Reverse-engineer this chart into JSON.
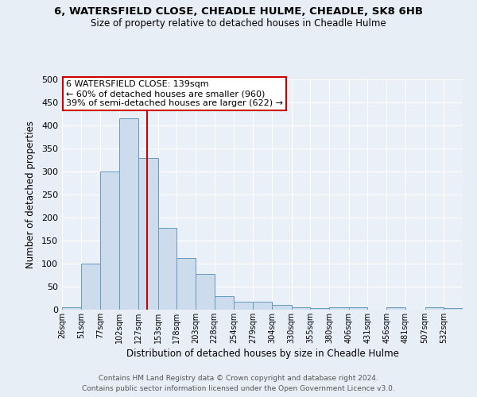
{
  "title1": "6, WATERSFIELD CLOSE, CHEADLE HULME, CHEADLE, SK8 6HB",
  "title2": "Size of property relative to detached houses in Cheadle Hulme",
  "xlabel": "Distribution of detached houses by size in Cheadle Hulme",
  "ylabel": "Number of detached properties",
  "bin_labels": [
    "26sqm",
    "51sqm",
    "77sqm",
    "102sqm",
    "127sqm",
    "153sqm",
    "178sqm",
    "203sqm",
    "228sqm",
    "254sqm",
    "279sqm",
    "304sqm",
    "330sqm",
    "355sqm",
    "380sqm",
    "406sqm",
    "431sqm",
    "456sqm",
    "481sqm",
    "507sqm",
    "532sqm"
  ],
  "bin_edges": [
    26,
    51,
    77,
    102,
    127,
    153,
    178,
    203,
    228,
    254,
    279,
    304,
    330,
    355,
    380,
    406,
    431,
    456,
    481,
    507,
    532,
    557
  ],
  "bar_heights": [
    5,
    100,
    300,
    415,
    330,
    178,
    112,
    77,
    30,
    17,
    18,
    10,
    5,
    3,
    5,
    5,
    0,
    5,
    0,
    5,
    3
  ],
  "bar_color": "#ccdcec",
  "bar_edge_color": "#6699bb",
  "vline_x": 139,
  "vline_color": "#cc0000",
  "ylim": [
    0,
    500
  ],
  "yticks": [
    0,
    50,
    100,
    150,
    200,
    250,
    300,
    350,
    400,
    450,
    500
  ],
  "annotation_title": "6 WATERSFIELD CLOSE: 139sqm",
  "annotation_line1": "← 60% of detached houses are smaller (960)",
  "annotation_line2": "39% of semi-detached houses are larger (622) →",
  "annotation_box_color": "#ffffff",
  "annotation_box_edge": "#cc0000",
  "footer1": "Contains HM Land Registry data © Crown copyright and database right 2024.",
  "footer2": "Contains public sector information licensed under the Open Government Licence v3.0.",
  "background_color": "#e8eef5",
  "plot_bg_color": "#eaf0f7"
}
